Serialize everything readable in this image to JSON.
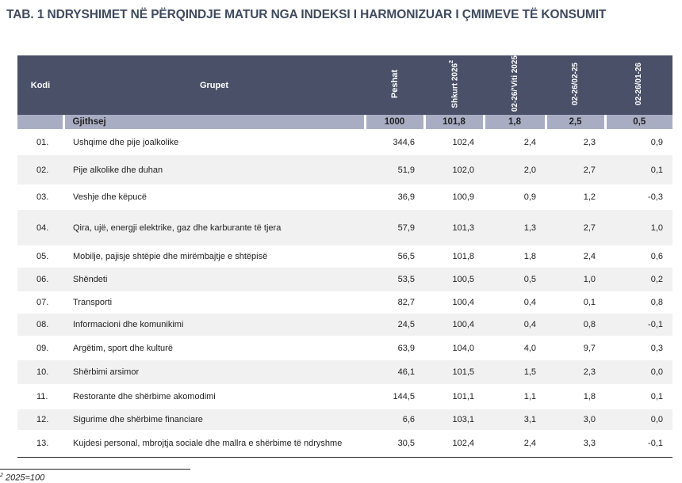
{
  "title": "TAB. 1 NDRYSHIMET NË PËRQINDJE MATUR NGA INDEKSI I HARMONIZUAR I ÇMIMEVE TË KONSUMIT",
  "headers": {
    "kodi": "Kodi",
    "grupet": "Grupet",
    "peshat": "Peshat",
    "shkurt": "Shkurt 2026",
    "shkurt_sup": "2",
    "c1": "02-26/'Viti 2025",
    "c2": "02-26/02-25",
    "c3": "02-26/01-26"
  },
  "total": {
    "name": "Gjithsej",
    "peshat": "1000",
    "index": "101,8",
    "v1": "1,8",
    "v2": "2,5",
    "v3": "0,5"
  },
  "rows": [
    {
      "code": "01.",
      "name": "Ushqime dhe pije joalkolike",
      "peshat": "344,6",
      "index": "102,4",
      "v1": "2,4",
      "v2": "2,3",
      "v3": "0,9"
    },
    {
      "code": "02.",
      "name": "Pije alkolike dhe duhan",
      "peshat": "51,9",
      "index": "102,0",
      "v1": "2,0",
      "v2": "2,7",
      "v3": "0,1"
    },
    {
      "code": "03.",
      "name": "Veshje dhe këpucë",
      "peshat": "36,9",
      "index": "100,9",
      "v1": "0,9",
      "v2": "1,2",
      "v3": "-0,3"
    },
    {
      "code": "04.",
      "name": "Qira, ujë, energji elektrike, gaz dhe karburante të tjera",
      "peshat": "57,9",
      "index": "101,3",
      "v1": "1,3",
      "v2": "2,7",
      "v3": "1,0"
    },
    {
      "code": "05.",
      "name": "Mobilje, pajisje shtëpie dhe mirëmbajtje e shtëpisë",
      "peshat": "56,5",
      "index": "101,8",
      "v1": "1,8",
      "v2": "2,4",
      "v3": "0,6"
    },
    {
      "code": "06.",
      "name": "Shëndeti",
      "peshat": "53,5",
      "index": "100,5",
      "v1": "0,5",
      "v2": "1,0",
      "v3": "0,2"
    },
    {
      "code": "07.",
      "name": "Transporti",
      "peshat": "82,7",
      "index": "100,4",
      "v1": "0,4",
      "v2": "0,1",
      "v3": "0,8"
    },
    {
      "code": "08.",
      "name": "Informacioni dhe komunikimi",
      "peshat": "24,5",
      "index": "100,4",
      "v1": "0,4",
      "v2": "0,8",
      "v3": "-0,1"
    },
    {
      "code": "09.",
      "name": "Argëtim, sport dhe kulturë",
      "peshat": "63,9",
      "index": "104,0",
      "v1": "4,0",
      "v2": "9,7",
      "v3": "0,3"
    },
    {
      "code": "10.",
      "name": "Shërbimi arsimor",
      "peshat": "46,1",
      "index": "101,5",
      "v1": "1,5",
      "v2": "2,3",
      "v3": "0,0"
    },
    {
      "code": "11.",
      "name": "Restorante dhe shërbime akomodimi",
      "peshat": "144,5",
      "index": "101,1",
      "v1": "1,1",
      "v2": "1,8",
      "v3": "0,1"
    },
    {
      "code": "12.",
      "name": "Sigurime dhe shërbime financiare",
      "peshat": "6,6",
      "index": "103,1",
      "v1": "3,1",
      "v2": "3,0",
      "v3": "0,0"
    },
    {
      "code": "13.",
      "name": "Kujdesi personal, mbrojtja sociale dhe mallra e shërbime të ndryshme",
      "peshat": "30,5",
      "index": "102,4",
      "v1": "2,4",
      "v2": "3,3",
      "v3": "-0,1"
    }
  ],
  "footnote": {
    "sup": "2",
    "text": "2025=100"
  }
}
